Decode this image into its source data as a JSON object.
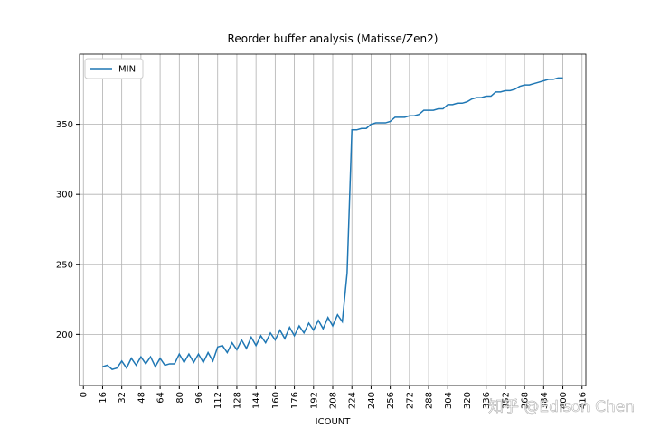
{
  "chart_data": {
    "type": "line",
    "title": "Reorder buffer analysis (Matisse/Zen2)",
    "xlabel": "ICOUNT",
    "x": [
      16,
      20,
      24,
      28,
      32,
      36,
      40,
      44,
      48,
      52,
      56,
      60,
      64,
      68,
      72,
      76,
      80,
      84,
      88,
      92,
      96,
      100,
      104,
      108,
      112,
      116,
      120,
      124,
      128,
      132,
      136,
      140,
      144,
      148,
      152,
      156,
      160,
      164,
      168,
      172,
      176,
      180,
      184,
      188,
      192,
      196,
      200,
      204,
      208,
      212,
      216,
      220,
      224,
      228,
      232,
      236,
      240,
      244,
      248,
      252,
      256,
      260,
      264,
      268,
      272,
      276,
      280,
      284,
      288,
      292,
      296,
      300,
      304,
      308,
      312,
      316,
      320,
      324,
      328,
      332,
      336,
      340,
      344,
      348,
      352,
      356,
      360,
      364,
      368,
      372,
      376,
      380,
      384,
      388,
      392,
      396,
      400
    ],
    "series": [
      {
        "name": "MIN",
        "color": "#1f77b4",
        "values": [
          177,
          178,
          175,
          176,
          181,
          176,
          183,
          178,
          184,
          179,
          184,
          177,
          183,
          178,
          179,
          179,
          186,
          180,
          186,
          180,
          186,
          180,
          187,
          181,
          191,
          192,
          187,
          194,
          189,
          196,
          190,
          198,
          192,
          199,
          194,
          201,
          196,
          203,
          197,
          205,
          199,
          206,
          201,
          208,
          203,
          210,
          204,
          212,
          206,
          214,
          209,
          244,
          346,
          346,
          347,
          347,
          350,
          351,
          351,
          351,
          352,
          355,
          355,
          355,
          356,
          356,
          357,
          360,
          360,
          360,
          361,
          361,
          364,
          364,
          365,
          365,
          366,
          368,
          369,
          369,
          370,
          370,
          373,
          373,
          374,
          374,
          375,
          377,
          378,
          378,
          379,
          380,
          381,
          382,
          382,
          383,
          383
        ]
      }
    ],
    "xlim": [
      -3.2,
      419.2
    ],
    "ylim": [
      163.5,
      400
    ],
    "xticks": [
      0,
      16,
      32,
      48,
      64,
      80,
      96,
      112,
      128,
      144,
      160,
      176,
      192,
      208,
      224,
      240,
      256,
      272,
      288,
      304,
      320,
      336,
      352,
      368,
      384,
      400,
      416
    ],
    "yticks": [
      200,
      250,
      300,
      350
    ],
    "grid": true,
    "legend": "upper left",
    "watermark": "知乎 @Edison Chen"
  }
}
